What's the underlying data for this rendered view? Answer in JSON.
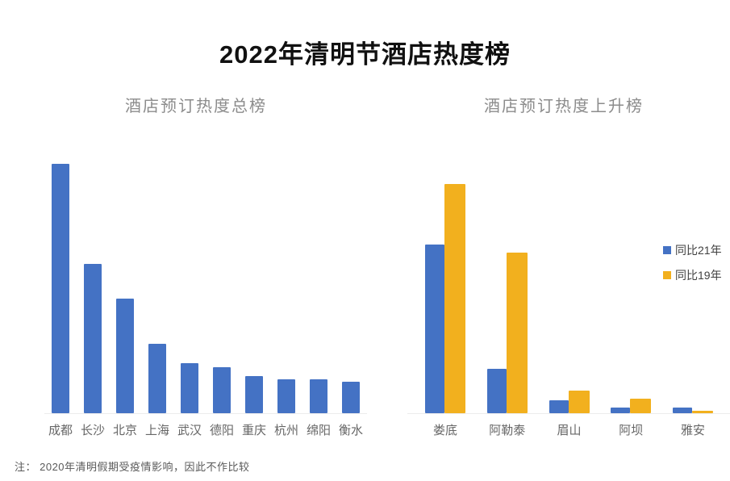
{
  "page": {
    "title": "2022年清明节酒店热度榜",
    "footnote": "注：  2020年清明假期受疫情影响，因此不作比较"
  },
  "colors": {
    "bar_blue": "#4472C4",
    "bar_yellow": "#F2B01E",
    "title_text": "#111111",
    "subtitle_text": "#8C8C8C",
    "axis_label_text": "#666666",
    "legend_text": "#404040",
    "footnote_text": "#595959"
  },
  "left_chart": {
    "subtitle": "酒店预订热度总榜"
  },
  "right_chart": {
    "subtitle": "酒店预订热度上升榜",
    "legend": [
      {
        "label": "同比21年",
        "color": "#4472C4"
      },
      {
        "label": "同比19年",
        "color": "#F2B01E"
      }
    ]
  },
  "chart_data": [
    {
      "type": "bar",
      "title": "酒店预订热度总榜",
      "categories": [
        "成都",
        "长沙",
        "北京",
        "上海",
        "武汉",
        "德阳",
        "重庆",
        "杭州",
        "绵阳",
        "衡水"
      ],
      "values": [
        100,
        60,
        46,
        28,
        20,
        18.5,
        15,
        13.5,
        13.5,
        12.5
      ],
      "xlabel": "",
      "ylabel": "",
      "ylim": [
        0,
        100
      ],
      "grid": false,
      "values_note": "relative popularity index estimated from bar heights; no numeric axis shown",
      "bar_color": "#4472C4"
    },
    {
      "type": "bar",
      "title": "酒店预订热度上升榜",
      "categories": [
        "娄底",
        "阿勒泰",
        "眉山",
        "阿坝",
        "雅安"
      ],
      "series": [
        {
          "name": "同比21年",
          "color": "#4472C4",
          "values": [
            73.5,
            19.5,
            5.5,
            2.5,
            2.5
          ]
        },
        {
          "name": "同比19年",
          "color": "#F2B01E",
          "values": [
            100,
            70,
            10,
            6.5,
            1
          ]
        }
      ],
      "xlabel": "",
      "ylabel": "",
      "ylim": [
        0,
        100
      ],
      "grid": false,
      "legend_position": "right",
      "values_note": "relative growth index estimated from bar heights; no numeric axis shown"
    }
  ]
}
